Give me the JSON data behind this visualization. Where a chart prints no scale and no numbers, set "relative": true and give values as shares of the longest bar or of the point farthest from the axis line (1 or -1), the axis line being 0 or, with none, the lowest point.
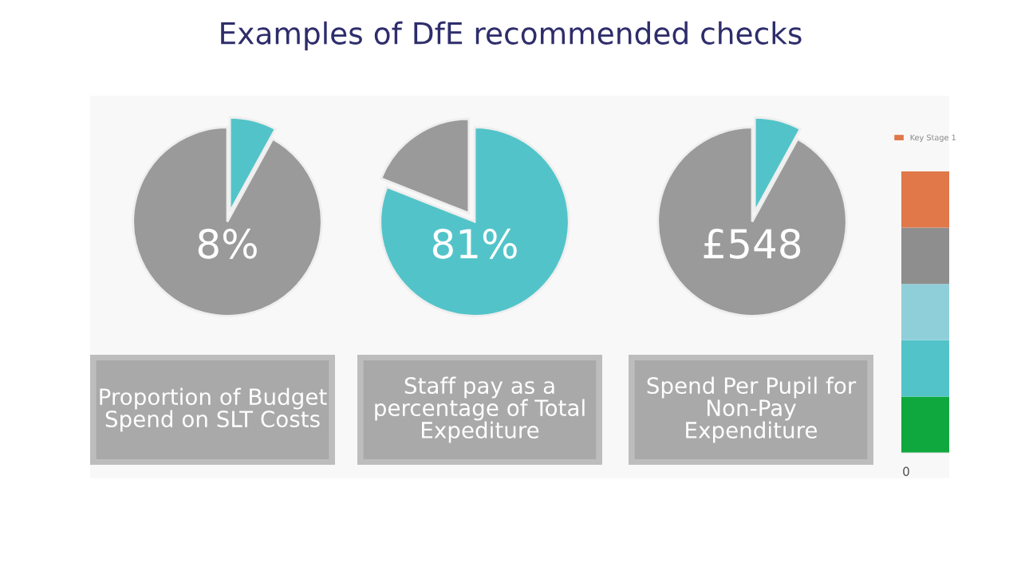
{
  "chart_data": [
    {
      "type": "pie",
      "title": "Examples of DfE recommended checks",
      "categories": [
        null,
        null
      ],
      "values": [
        8,
        92
      ],
      "colors": [
        "#52c4c9",
        "#9a9a9a"
      ],
      "annotations": [
        "8%"
      ],
      "xlabel": "Proportion of Budget Spend on SLT Costs"
    },
    {
      "type": "pie",
      "categories": [
        null,
        null
      ],
      "values": [
        81,
        19
      ],
      "colors": [
        "#52c4c9",
        "#9a9a9a"
      ],
      "annotations": [
        "81%"
      ],
      "xlabel": "Staff pay as a percentage of Total Expediture"
    },
    {
      "type": "pie",
      "categories": [
        null,
        null
      ],
      "values": [
        8,
        92
      ],
      "colors": [
        "#52c4c9",
        "#9a9a9a"
      ],
      "annotations": [
        "£548"
      ],
      "xlabel": "Spend Per Pupil for Non-Pay Expenditure"
    },
    {
      "type": "bar",
      "stacked": true,
      "relative": true,
      "categories": [
        null
      ],
      "legend": "top",
      "annotations": [
        "0"
      ],
      "series": [
        {
          "color": "#0fa83e",
          "values": [
            0.2
          ]
        },
        {
          "color": "#52c4c9",
          "values": [
            0.2
          ]
        },
        {
          "color": "#8fcfda",
          "values": [
            0.2
          ]
        },
        {
          "color": "#8e8e8e",
          "values": [
            0.2
          ]
        },
        {
          "name": "Key Stage 1",
          "color": "#e0784a",
          "values": [
            0.2
          ]
        }
      ]
    }
  ]
}
